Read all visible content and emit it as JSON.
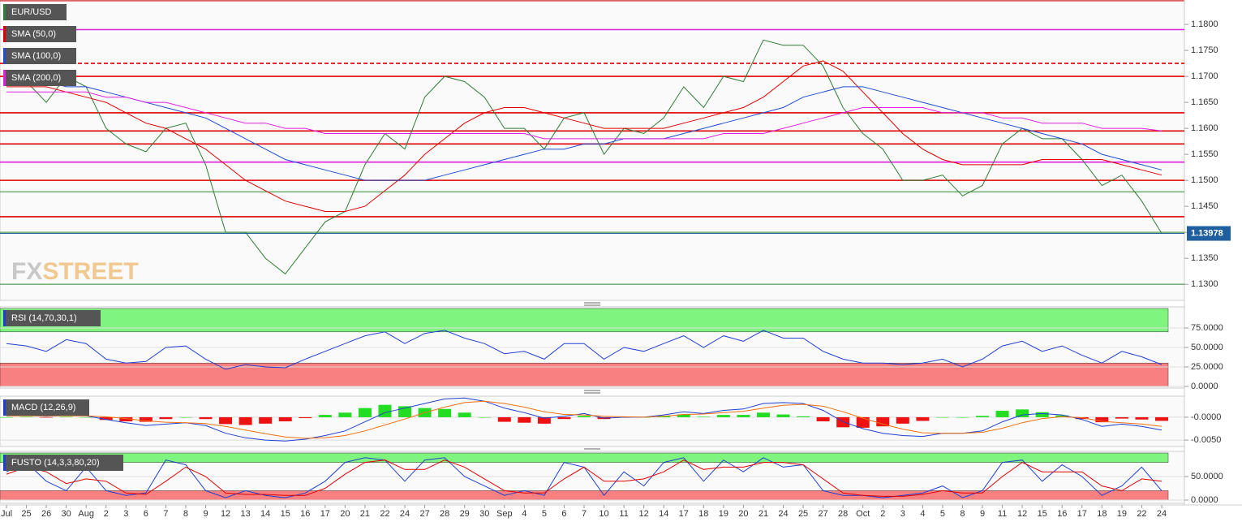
{
  "chart_data": {
    "type": "line",
    "symbol": "EUR/USD",
    "categories": [
      "Jul",
      "25",
      "26",
      "30",
      "Aug",
      "2",
      "3",
      "6",
      "7",
      "8",
      "9",
      "12",
      "13",
      "14",
      "15",
      "16",
      "17",
      "20",
      "21",
      "22",
      "24",
      "27",
      "28",
      "29",
      "30",
      "Sep",
      "4",
      "5",
      "6",
      "7",
      "10",
      "11",
      "12",
      "14",
      "17",
      "18",
      "19",
      "20",
      "21",
      "24",
      "25",
      "27",
      "28",
      "Oct",
      "2",
      "3",
      "4",
      "5",
      "8",
      "9",
      "11",
      "12",
      "15",
      "16",
      "17",
      "18",
      "19",
      "22",
      "24"
    ],
    "ylim": [
      1.1269,
      1.1847
    ],
    "yticks": [
      {
        "value": 1.13,
        "label": "1.1300"
      },
      {
        "value": 1.135,
        "label": "1.1350"
      },
      {
        "value": 1.14,
        "label": "1.1400"
      },
      {
        "value": 1.145,
        "label": "1.1450"
      },
      {
        "value": 1.15,
        "label": "1.1500"
      },
      {
        "value": 1.155,
        "label": "1.1550"
      },
      {
        "value": 1.16,
        "label": "1.1600"
      },
      {
        "value": 1.165,
        "label": "1.1650"
      },
      {
        "value": 1.17,
        "label": "1.1700"
      },
      {
        "value": 1.175,
        "label": "1.1750"
      },
      {
        "value": 1.18,
        "label": "1.1800"
      }
    ],
    "series": [
      {
        "name": "EUR/USD",
        "color": "#2e7d32",
        "values": [
          1.169,
          1.169,
          1.165,
          1.17,
          1.168,
          1.16,
          1.157,
          1.1555,
          1.16,
          1.161,
          1.153,
          1.14,
          1.14,
          1.135,
          1.132,
          1.137,
          1.142,
          1.144,
          1.153,
          1.159,
          1.156,
          1.166,
          1.17,
          1.169,
          1.166,
          1.16,
          1.16,
          1.156,
          1.162,
          1.163,
          1.155,
          1.16,
          1.159,
          1.162,
          1.168,
          1.164,
          1.17,
          1.169,
          1.177,
          1.176,
          1.176,
          1.172,
          1.164,
          1.159,
          1.156,
          1.15,
          1.15,
          1.151,
          1.147,
          1.149,
          1.157,
          1.16,
          1.158,
          1.158,
          1.154,
          1.149,
          1.151,
          1.146,
          1.1398
        ]
      },
      {
        "name": "SMA (50,0)",
        "color": "#e00000",
        "values": [
          1.168,
          1.168,
          1.168,
          1.167,
          1.166,
          1.165,
          1.163,
          1.161,
          1.16,
          1.158,
          1.156,
          1.153,
          1.15,
          1.148,
          1.146,
          1.145,
          1.144,
          1.144,
          1.145,
          1.148,
          1.151,
          1.155,
          1.158,
          1.161,
          1.163,
          1.164,
          1.164,
          1.163,
          1.162,
          1.161,
          1.16,
          1.16,
          1.16,
          1.16,
          1.161,
          1.162,
          1.163,
          1.164,
          1.166,
          1.169,
          1.172,
          1.173,
          1.171,
          1.167,
          1.163,
          1.159,
          1.156,
          1.154,
          1.153,
          1.153,
          1.153,
          1.153,
          1.154,
          1.154,
          1.154,
          1.154,
          1.153,
          1.152,
          1.151
        ]
      },
      {
        "name": "SMA (100,0)",
        "color": "#1f4fd1",
        "values": [
          1.169,
          1.169,
          1.169,
          1.168,
          1.168,
          1.167,
          1.166,
          1.165,
          1.164,
          1.163,
          1.162,
          1.16,
          1.158,
          1.156,
          1.154,
          1.153,
          1.152,
          1.151,
          1.15,
          1.15,
          1.15,
          1.15,
          1.151,
          1.152,
          1.153,
          1.154,
          1.155,
          1.156,
          1.156,
          1.157,
          1.157,
          1.158,
          1.158,
          1.158,
          1.159,
          1.16,
          1.161,
          1.162,
          1.163,
          1.164,
          1.166,
          1.167,
          1.168,
          1.168,
          1.167,
          1.166,
          1.165,
          1.164,
          1.163,
          1.162,
          1.161,
          1.16,
          1.159,
          1.158,
          1.157,
          1.155,
          1.154,
          1.153,
          1.152
        ]
      },
      {
        "name": "SMA (200,0)",
        "color": "#e020e0",
        "values": [
          1.167,
          1.167,
          1.167,
          1.167,
          1.167,
          1.166,
          1.166,
          1.165,
          1.165,
          1.164,
          1.163,
          1.162,
          1.161,
          1.161,
          1.16,
          1.16,
          1.159,
          1.159,
          1.159,
          1.159,
          1.159,
          1.159,
          1.159,
          1.159,
          1.159,
          1.159,
          1.159,
          1.158,
          1.158,
          1.158,
          1.158,
          1.158,
          1.158,
          1.158,
          1.158,
          1.158,
          1.159,
          1.159,
          1.159,
          1.16,
          1.161,
          1.162,
          1.163,
          1.164,
          1.164,
          1.164,
          1.164,
          1.163,
          1.163,
          1.163,
          1.162,
          1.162,
          1.161,
          1.161,
          1.161,
          1.16,
          1.16,
          1.16,
          1.1595
        ]
      }
    ],
    "levels": [
      {
        "value": 1.179,
        "color": "#e020e0",
        "style": "solid"
      },
      {
        "value": 1.1725,
        "color": "#e00000",
        "style": "dashed"
      },
      {
        "value": 1.17,
        "color": "#e00000",
        "style": "solid"
      },
      {
        "value": 1.163,
        "color": "#e00000",
        "style": "solid"
      },
      {
        "value": 1.1595,
        "color": "#e00000",
        "style": "solid"
      },
      {
        "value": 1.157,
        "color": "#e00000",
        "style": "solid"
      },
      {
        "value": 1.1535,
        "color": "#e020e0",
        "style": "solid"
      },
      {
        "value": 1.15,
        "color": "#e00000",
        "style": "solid"
      },
      {
        "value": 1.1478,
        "color": "#2e8b2e",
        "style": "solid"
      },
      {
        "value": 1.143,
        "color": "#e00000",
        "style": "solid"
      },
      {
        "value": 1.14,
        "color": "#2e8b2e",
        "style": "solid"
      },
      {
        "value": 1.13,
        "color": "#2e8b2e",
        "style": "solid"
      }
    ],
    "last_price": 1.13978,
    "watermark": [
      "FX",
      "STREET"
    ],
    "indicators": [
      {
        "type": "line",
        "title": "RSI (14,70,30,1)",
        "ylim": [
          0,
          100
        ],
        "yticks": [
          {
            "value": 0,
            "label": "0.0000"
          },
          {
            "value": 25,
            "label": "25.0000"
          },
          {
            "value": 50,
            "label": "50.0000"
          },
          {
            "value": 75,
            "label": "75.0000"
          }
        ],
        "zones": [
          {
            "from": 70,
            "to": 100,
            "color": "#7ff57f"
          },
          {
            "from": 0,
            "to": 30,
            "color": "#f98080"
          }
        ],
        "series": [
          {
            "color": "#1f3fd1",
            "values": [
              55,
              52,
              45,
              60,
              55,
              35,
              30,
              32,
              50,
              52,
              35,
              22,
              28,
              25,
              24,
              35,
              45,
              55,
              65,
              70,
              55,
              68,
              72,
              62,
              55,
              42,
              45,
              35,
              55,
              55,
              35,
              50,
              45,
              55,
              65,
              50,
              65,
              58,
              72,
              62,
              62,
              45,
              35,
              30,
              30,
              28,
              30,
              35,
              25,
              35,
              52,
              58,
              45,
              52,
              40,
              30,
              45,
              38,
              28
            ]
          }
        ]
      },
      {
        "type": "line",
        "title": "MACD (12,26,9)",
        "ylim": [
          -0.0064,
          0.0046
        ],
        "yticks": [
          {
            "value": -0.005,
            "label": "-0.0050"
          },
          {
            "value": 0,
            "label": "-0.0000"
          }
        ],
        "zones": [],
        "series": [
          {
            "type": "bar",
            "color": "#22dd22",
            "negative_color": "#ee1111",
            "values": [
              0,
              0.0001,
              -0.0001,
              0.0001,
              0,
              -0.0006,
              -0.0009,
              -0.001,
              -0.0004,
              0,
              -0.0004,
              -0.0015,
              -0.0017,
              -0.0014,
              -0.0009,
              -0.0002,
              0.0005,
              0.001,
              0.002,
              0.0027,
              0.0024,
              0.002,
              0.0018,
              0.001,
              0,
              -0.001,
              -0.0012,
              -0.0014,
              -0.0004,
              0.0003,
              -0.0004,
              -0.0001,
              0,
              0.0003,
              0.0006,
              0.0001,
              0.0005,
              0.0005,
              0.001,
              0.0006,
              0.0002,
              -0.0009,
              -0.0022,
              -0.0023,
              -0.002,
              -0.0014,
              -0.0008,
              0,
              0,
              0.0003,
              0.0014,
              0.0017,
              0.0011,
              0.0004,
              -0.0004,
              -0.0011,
              -0.0003,
              -0.0005,
              -0.0008
            ]
          },
          {
            "color": "#1f3fd1",
            "values": [
              0.0003,
              0.0004,
              0.0002,
              0.0004,
              0.0003,
              -0.0005,
              -0.0012,
              -0.0018,
              -0.0015,
              -0.0012,
              -0.0018,
              -0.0035,
              -0.0045,
              -0.005,
              -0.0052,
              -0.0048,
              -0.004,
              -0.003,
              -0.001,
              0.001,
              0.002,
              0.003,
              0.004,
              0.0042,
              0.0035,
              0.002,
              0.001,
              -0.0002,
              0.0002,
              0.0008,
              -0.0002,
              0,
              0,
              0.0005,
              0.0012,
              0.0008,
              0.0015,
              0.0018,
              0.003,
              0.0032,
              0.003,
              0.0015,
              -0.001,
              -0.0025,
              -0.0035,
              -0.004,
              -0.0042,
              -0.0035,
              -0.0035,
              -0.003,
              -0.001,
              0.0005,
              0.0008,
              0.0005,
              -0.0005,
              -0.002,
              -0.0015,
              -0.002,
              -0.0028
            ]
          },
          {
            "color": "#f07010",
            "values": [
              0.0003,
              0.0003,
              0.0003,
              0.0003,
              0.0003,
              0.0001,
              -0.0003,
              -0.0008,
              -0.0011,
              -0.0012,
              -0.0014,
              -0.002,
              -0.0028,
              -0.0036,
              -0.0043,
              -0.0046,
              -0.0045,
              -0.004,
              -0.003,
              -0.0017,
              -0.0004,
              0.001,
              0.0022,
              0.0032,
              0.0035,
              0.003,
              0.0022,
              0.0012,
              0.0006,
              0.0005,
              0.0002,
              0.0001,
              0,
              0.0002,
              0.0006,
              0.0007,
              0.001,
              0.0013,
              0.002,
              0.0026,
              0.0028,
              0.0024,
              0.0012,
              -0.0002,
              -0.0015,
              -0.0026,
              -0.0034,
              -0.0035,
              -0.0035,
              -0.0033,
              -0.0024,
              -0.0012,
              -0.0003,
              0.0001,
              -0.0001,
              -0.0009,
              -0.0012,
              -0.0015,
              -0.002
            ]
          }
        ]
      },
      {
        "type": "line",
        "title": "FUSTO (14,3,3,80,20)",
        "ylim": [
          0,
          100
        ],
        "yticks": [
          {
            "value": 0,
            "label": "0.0000"
          },
          {
            "value": 50,
            "label": "50.0000"
          }
        ],
        "zones": [
          {
            "from": 80,
            "to": 100,
            "color": "#7ff57f"
          },
          {
            "from": 0,
            "to": 20,
            "color": "#f98080"
          }
        ],
        "series": [
          {
            "color": "#1f3fd1",
            "values": [
              60,
              80,
              40,
              20,
              70,
              20,
              10,
              15,
              85,
              75,
              20,
              5,
              20,
              10,
              5,
              15,
              40,
              80,
              90,
              85,
              40,
              85,
              90,
              50,
              30,
              10,
              20,
              10,
              80,
              70,
              10,
              60,
              30,
              80,
              90,
              40,
              85,
              60,
              90,
              70,
              75,
              20,
              10,
              10,
              5,
              10,
              15,
              30,
              5,
              20,
              80,
              85,
              40,
              75,
              50,
              10,
              30,
              70,
              20
            ]
          },
          {
            "color": "#e00000",
            "values": [
              55,
              70,
              60,
              35,
              45,
              40,
              15,
              12,
              40,
              70,
              50,
              15,
              12,
              12,
              10,
              10,
              25,
              55,
              80,
              85,
              65,
              65,
              85,
              70,
              45,
              20,
              15,
              15,
              45,
              70,
              40,
              40,
              45,
              60,
              85,
              65,
              70,
              70,
              80,
              80,
              75,
              45,
              15,
              10,
              8,
              8,
              12,
              20,
              15,
              15,
              50,
              80,
              60,
              60,
              60,
              30,
              20,
              45,
              40
            ]
          }
        ]
      }
    ]
  }
}
